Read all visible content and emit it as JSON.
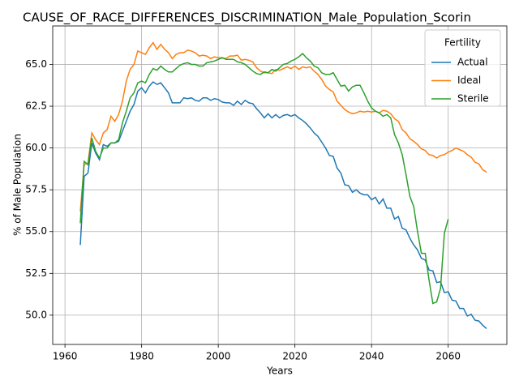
{
  "chart_data": {
    "type": "line",
    "title": "CAUSE_OF_RACE_DIFFERENCES_DISCRIMINATION_Male_Population_Scorin",
    "xlabel": "Years",
    "ylabel": "% of Male Population",
    "legend_title": "Fertility",
    "legend": "upper right",
    "grid": true,
    "x": [
      1964,
      1965,
      1966,
      1967,
      1968,
      1969,
      1970,
      1971,
      1972,
      1973,
      1974,
      1975,
      1976,
      1977,
      1978,
      1979,
      1980,
      1981,
      1982,
      1983,
      1984,
      1985,
      1986,
      1987,
      1988,
      1989,
      1990,
      1991,
      1992,
      1993,
      1994,
      1995,
      1996,
      1997,
      1998,
      1999,
      2000,
      2001,
      2002,
      2003,
      2004,
      2005,
      2006,
      2007,
      2008,
      2009,
      2010,
      2011,
      2012,
      2013,
      2014,
      2015,
      2016,
      2017,
      2018,
      2019,
      2020,
      2021,
      2022,
      2023,
      2024,
      2025,
      2026,
      2027,
      2028,
      2029,
      2030,
      2031,
      2032,
      2033,
      2034,
      2035,
      2036,
      2037,
      2038,
      2039,
      2040,
      2041,
      2042,
      2043,
      2044,
      2045,
      2046,
      2047,
      2048,
      2049,
      2050,
      2051,
      2052,
      2053,
      2054,
      2055,
      2056,
      2057,
      2058,
      2059,
      2060,
      2061,
      2062,
      2063,
      2064,
      2065,
      2066,
      2067,
      2068,
      2069,
      2070
    ],
    "series": [
      {
        "name": "Actual",
        "color": "#1f77b4",
        "values": [
          54.2,
          58.3,
          58.5,
          60.3,
          59.7,
          59.3,
          60.2,
          60.1,
          60.3,
          60.3,
          60.4,
          61.0,
          61.6,
          62.2,
          62.6,
          63.4,
          63.6,
          63.3,
          63.7,
          63.95,
          63.8,
          63.9,
          63.6,
          63.3,
          62.7,
          62.7,
          62.7,
          63.0,
          62.95,
          63.0,
          62.85,
          62.8,
          63.0,
          63.0,
          62.85,
          62.95,
          62.9,
          62.75,
          62.7,
          62.7,
          62.55,
          62.8,
          62.6,
          62.85,
          62.7,
          62.65,
          62.35,
          62.1,
          61.8,
          62.05,
          61.8,
          62.0,
          61.8,
          61.95,
          62.0,
          61.9,
          62.0,
          61.8,
          61.65,
          61.45,
          61.2,
          60.9,
          60.7,
          60.35,
          60.0,
          59.55,
          59.5,
          58.8,
          58.5,
          57.8,
          57.75,
          57.35,
          57.5,
          57.3,
          57.2,
          57.2,
          56.9,
          57.05,
          56.65,
          56.95,
          56.4,
          56.4,
          55.75,
          55.9,
          55.2,
          55.1,
          54.6,
          54.2,
          53.9,
          53.4,
          53.3,
          52.7,
          52.65,
          51.95,
          52.0,
          51.35,
          51.4,
          50.9,
          50.85,
          50.4,
          50.4,
          49.95,
          50.05,
          49.7,
          49.65,
          49.4,
          49.2
        ]
      },
      {
        "name": "Ideal",
        "color": "#ff7f0e",
        "values": [
          56.2,
          59.0,
          59.1,
          60.9,
          60.5,
          60.2,
          60.9,
          61.1,
          61.9,
          61.6,
          62.0,
          62.8,
          64.0,
          64.7,
          65.0,
          65.8,
          65.7,
          65.6,
          66.0,
          66.3,
          65.9,
          66.2,
          65.9,
          65.7,
          65.35,
          65.6,
          65.7,
          65.7,
          65.85,
          65.8,
          65.7,
          65.5,
          65.55,
          65.5,
          65.35,
          65.45,
          65.4,
          65.4,
          65.35,
          65.5,
          65.5,
          65.55,
          65.25,
          65.3,
          65.25,
          65.15,
          64.8,
          64.6,
          64.5,
          64.5,
          64.45,
          64.7,
          64.65,
          64.75,
          64.85,
          64.75,
          64.9,
          64.7,
          64.85,
          64.8,
          64.85,
          64.6,
          64.4,
          64.1,
          63.7,
          63.5,
          63.35,
          62.8,
          62.55,
          62.3,
          62.15,
          62.05,
          62.1,
          62.2,
          62.15,
          62.2,
          62.15,
          62.2,
          62.1,
          62.25,
          62.2,
          62.05,
          61.75,
          61.6,
          61.1,
          60.9,
          60.55,
          60.4,
          60.2,
          59.95,
          59.85,
          59.6,
          59.55,
          59.4,
          59.55,
          59.6,
          59.75,
          59.85,
          60.0,
          59.9,
          59.8,
          59.6,
          59.45,
          59.15,
          59.05,
          58.7,
          58.55
        ]
      },
      {
        "name": "Sterile",
        "color": "#2ca02c",
        "values": [
          55.5,
          59.2,
          59.0,
          60.6,
          59.8,
          59.4,
          60.0,
          60.0,
          60.3,
          60.3,
          60.5,
          61.5,
          62.2,
          63.0,
          63.3,
          63.9,
          64.0,
          63.9,
          64.4,
          64.75,
          64.65,
          64.9,
          64.7,
          64.55,
          64.55,
          64.75,
          64.95,
          65.05,
          65.1,
          65.0,
          65.0,
          64.9,
          64.9,
          65.1,
          65.15,
          65.2,
          65.3,
          65.4,
          65.3,
          65.3,
          65.3,
          65.15,
          65.1,
          65.0,
          64.8,
          64.6,
          64.45,
          64.4,
          64.55,
          64.5,
          64.7,
          64.6,
          64.8,
          65.0,
          65.05,
          65.2,
          65.3,
          65.45,
          65.65,
          65.4,
          65.2,
          64.9,
          64.8,
          64.5,
          64.4,
          64.4,
          64.5,
          64.1,
          63.7,
          63.75,
          63.4,
          63.65,
          63.75,
          63.75,
          63.3,
          62.8,
          62.4,
          62.2,
          62.1,
          61.9,
          62.0,
          61.8,
          60.8,
          60.3,
          59.6,
          58.4,
          57.1,
          56.5,
          55.0,
          53.7,
          53.7,
          52.1,
          50.7,
          50.8,
          51.6,
          54.9,
          55.75,
          null,
          null,
          null,
          null,
          null,
          null,
          null,
          null,
          null,
          null
        ]
      }
    ],
    "xlim": [
      1956.8,
      2075.3
    ],
    "xticks": [
      1960,
      1980,
      2000,
      2020,
      2040,
      2060
    ],
    "ylim": [
      48.25,
      67.3
    ],
    "yticks": [
      {
        "value": 50,
        "label": "50.0"
      },
      52.5,
      {
        "value": 55,
        "label": "55.0"
      },
      57.5,
      {
        "value": 60,
        "label": "60.0"
      },
      62.5,
      {
        "value": 65,
        "label": "65.0"
      }
    ]
  }
}
